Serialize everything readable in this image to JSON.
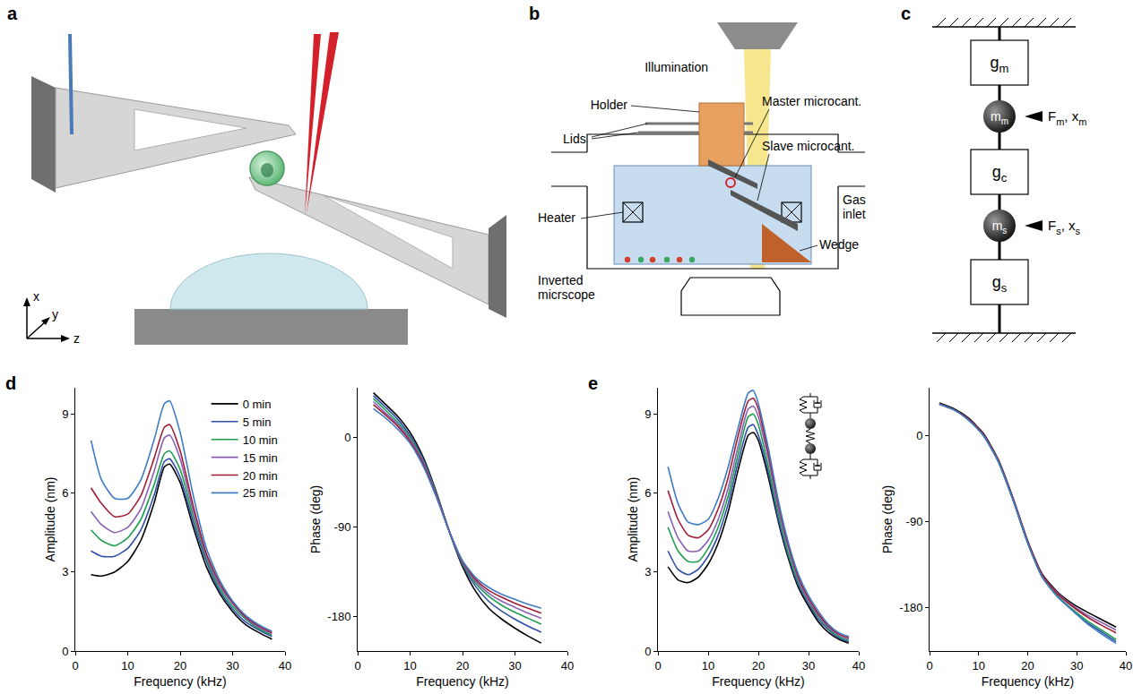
{
  "diagram_a": {
    "panel_label": "a",
    "axes": {
      "x": "x",
      "y": "y",
      "z": "z"
    }
  },
  "diagram_b": {
    "panel_label": "b",
    "labels": {
      "illumination": "Illumination",
      "holder": "Holder",
      "master": "Master microcant.",
      "slave": "Slave microcant.",
      "lids": "Lids",
      "gas_inlet": "Gas inlet",
      "heater": "Heater",
      "microscope": "Inverted micrscope",
      "wedge": "Wedge"
    }
  },
  "diagram_c": {
    "panel_label": "c",
    "elements": {
      "g_m": [
        [
          "g",
          "m"
        ]
      ],
      "m_m": [
        [
          "m",
          "m"
        ]
      ],
      "F_m": [
        [
          "F",
          "m"
        ],
        [
          ", x",
          "m"
        ]
      ],
      "g_c": [
        [
          "g",
          "c"
        ]
      ],
      "m_s": [
        [
          "m",
          "s"
        ]
      ],
      "F_s": [
        [
          "F",
          "s"
        ],
        [
          ", x",
          "s"
        ]
      ],
      "g_s": [
        [
          "g",
          "s"
        ]
      ]
    }
  },
  "chart_data": [
    {
      "type": "line",
      "panel_label": "d",
      "xlabel": "Frequency (kHz)",
      "ylabel": "Amplitude (nm)",
      "xlim": [
        0,
        40
      ],
      "xticks": [
        0,
        10,
        20,
        30,
        40
      ],
      "ylim": [
        0,
        10
      ],
      "yticks": [
        0,
        3,
        6,
        9
      ],
      "grid": false,
      "legend": "upper right",
      "x": [
        3,
        5,
        7.5,
        10,
        12.5,
        15,
        17,
        18,
        20,
        22.5,
        25,
        27.5,
        30,
        32.5,
        35,
        37.5
      ],
      "series": [
        {
          "name": "0 min",
          "color": "#000000",
          "values": [
            2.9,
            2.85,
            3.0,
            3.4,
            4.2,
            5.6,
            7.0,
            7.1,
            6.4,
            4.7,
            3.2,
            2.2,
            1.5,
            1.0,
            0.7,
            0.45
          ]
        },
        {
          "name": "5 min",
          "color": "#2f4fa8",
          "values": [
            3.8,
            3.6,
            3.6,
            3.9,
            4.6,
            5.9,
            7.2,
            7.3,
            6.6,
            4.9,
            3.4,
            2.3,
            1.6,
            1.1,
            0.8,
            0.55
          ]
        },
        {
          "name": "10 min",
          "color": "#1e9e50",
          "values": [
            4.6,
            4.2,
            4.0,
            4.3,
            5.0,
            6.3,
            7.5,
            7.6,
            6.9,
            5.1,
            3.5,
            2.4,
            1.7,
            1.2,
            0.85,
            0.6
          ]
        },
        {
          "name": "15 min",
          "color": "#8a5fb5",
          "values": [
            5.3,
            4.8,
            4.5,
            4.7,
            5.4,
            6.8,
            8.1,
            8.2,
            7.3,
            5.3,
            3.6,
            2.5,
            1.8,
            1.25,
            0.9,
            0.65
          ]
        },
        {
          "name": "20 min",
          "color": "#a01d36",
          "values": [
            6.2,
            5.6,
            5.1,
            5.2,
            5.9,
            7.3,
            8.5,
            8.6,
            7.6,
            5.5,
            3.7,
            2.6,
            1.85,
            1.3,
            0.95,
            0.7
          ]
        },
        {
          "name": "25 min",
          "color": "#3e7cc4",
          "values": [
            8.0,
            6.5,
            5.8,
            5.8,
            6.5,
            8.0,
            9.4,
            9.5,
            8.3,
            5.9,
            3.9,
            2.7,
            1.9,
            1.35,
            1.0,
            0.75
          ]
        }
      ]
    },
    {
      "type": "line",
      "xlabel": "Frequency (kHz)",
      "ylabel": "Phase (deg)",
      "xlim": [
        0,
        40
      ],
      "xticks": [
        0,
        10,
        20,
        30,
        40
      ],
      "ylim": [
        -215,
        50
      ],
      "yticks": [
        -180,
        -90,
        0
      ],
      "grid": false,
      "x": [
        3,
        5,
        7.5,
        10,
        12.5,
        15,
        17.5,
        20,
        22.5,
        25,
        27.5,
        30,
        32.5,
        35
      ],
      "series": [
        {
          "color": "#000000",
          "values": [
            45,
            35,
            22,
            5,
            -20,
            -55,
            -95,
            -130,
            -155,
            -172,
            -183,
            -192,
            -200,
            -207
          ]
        },
        {
          "color": "#2f4fa8",
          "values": [
            42,
            32,
            19,
            2,
            -22,
            -56,
            -95,
            -128,
            -150,
            -165,
            -175,
            -183,
            -190,
            -196
          ]
        },
        {
          "color": "#1e9e50",
          "values": [
            39,
            29,
            16,
            0,
            -24,
            -57,
            -95,
            -127,
            -147,
            -160,
            -169,
            -176,
            -182,
            -188
          ]
        },
        {
          "color": "#8a5fb5",
          "values": [
            36,
            26,
            14,
            -2,
            -25,
            -58,
            -95,
            -126,
            -145,
            -157,
            -165,
            -171,
            -177,
            -182
          ]
        },
        {
          "color": "#a01d36",
          "values": [
            33,
            24,
            12,
            -4,
            -27,
            -59,
            -95,
            -125,
            -143,
            -154,
            -161,
            -167,
            -172,
            -177
          ]
        },
        {
          "color": "#3e7cc4",
          "values": [
            29,
            21,
            9,
            -6,
            -29,
            -60,
            -95,
            -124,
            -141,
            -151,
            -158,
            -163,
            -168,
            -172
          ]
        }
      ]
    },
    {
      "type": "line",
      "panel_label": "e",
      "xlabel": "Frequency (kHz)",
      "ylabel": "Amplitude (nm)",
      "xlim": [
        0,
        40
      ],
      "xticks": [
        0,
        10,
        20,
        30,
        40
      ],
      "ylim": [
        0,
        10
      ],
      "yticks": [
        0,
        3,
        6,
        9
      ],
      "grid": false,
      "x": [
        2,
        4,
        6,
        8,
        10,
        12,
        14,
        16,
        18,
        19,
        20,
        22,
        24,
        26,
        28,
        30,
        32,
        34,
        36,
        38
      ],
      "series": [
        {
          "color": "#000000",
          "values": [
            3.2,
            2.7,
            2.6,
            2.8,
            3.3,
            4.1,
            5.3,
            6.9,
            8.2,
            8.3,
            8.0,
            6.6,
            4.9,
            3.5,
            2.4,
            1.7,
            1.1,
            0.7,
            0.45,
            0.3
          ]
        },
        {
          "color": "#2f4fa8",
          "values": [
            3.8,
            3.1,
            2.9,
            3.1,
            3.6,
            4.4,
            5.6,
            7.2,
            8.5,
            8.6,
            8.2,
            6.8,
            5.0,
            3.6,
            2.5,
            1.8,
            1.2,
            0.8,
            0.5,
            0.35
          ]
        },
        {
          "color": "#1e9e50",
          "values": [
            4.7,
            3.8,
            3.4,
            3.4,
            3.9,
            4.7,
            5.9,
            7.5,
            8.9,
            9.0,
            8.6,
            7.0,
            5.2,
            3.7,
            2.6,
            1.85,
            1.3,
            0.85,
            0.55,
            0.4
          ]
        },
        {
          "color": "#8a5fb5",
          "values": [
            5.3,
            4.3,
            3.8,
            3.8,
            4.2,
            5.0,
            6.2,
            7.8,
            9.2,
            9.3,
            8.9,
            7.3,
            5.4,
            3.9,
            2.7,
            1.9,
            1.35,
            0.9,
            0.6,
            0.45
          ]
        },
        {
          "color": "#a01d36",
          "values": [
            6.1,
            5.0,
            4.4,
            4.3,
            4.6,
            5.4,
            6.6,
            8.2,
            9.5,
            9.6,
            9.2,
            7.5,
            5.6,
            4.0,
            2.8,
            2.0,
            1.4,
            0.95,
            0.65,
            0.5
          ]
        },
        {
          "color": "#3e7cc4",
          "values": [
            7.0,
            5.6,
            4.9,
            4.8,
            5.0,
            5.8,
            7.0,
            8.5,
            9.8,
            9.9,
            9.4,
            7.7,
            5.7,
            4.1,
            2.9,
            2.1,
            1.5,
            1.0,
            0.7,
            0.55
          ]
        }
      ]
    },
    {
      "type": "line",
      "xlabel": "Frequency (kHz)",
      "ylabel": "Phase (deg)",
      "xlim": [
        0,
        40
      ],
      "xticks": [
        0,
        10,
        20,
        30,
        40
      ],
      "ylim": [
        -225,
        50
      ],
      "yticks": [
        -180,
        -90,
        0
      ],
      "grid": false,
      "x": [
        2,
        5,
        8,
        11,
        14,
        17,
        20,
        23,
        26,
        29,
        32,
        35,
        38
      ],
      "series": [
        {
          "color": "#000000",
          "values": [
            34,
            28,
            18,
            2,
            -25,
            -65,
            -110,
            -145,
            -163,
            -175,
            -184,
            -192,
            -200
          ]
        },
        {
          "color": "#2f4fa8",
          "values": [
            33,
            27,
            17,
            0,
            -27,
            -67,
            -112,
            -148,
            -168,
            -182,
            -195,
            -205,
            -215
          ]
        },
        {
          "color": "#1e9e50",
          "values": [
            33,
            27,
            16,
            0,
            -27,
            -67,
            -112,
            -148,
            -167,
            -181,
            -193,
            -203,
            -213
          ]
        },
        {
          "color": "#8a5fb5",
          "values": [
            33,
            27,
            17,
            1,
            -26,
            -66,
            -111,
            -146,
            -164,
            -177,
            -187,
            -195,
            -203
          ]
        },
        {
          "color": "#a01d36",
          "values": [
            33,
            27,
            17,
            1,
            -26,
            -66,
            -111,
            -146,
            -165,
            -178,
            -189,
            -198,
            -206
          ]
        },
        {
          "color": "#3e7cc4",
          "values": [
            33,
            27,
            16,
            0,
            -27,
            -67,
            -112,
            -148,
            -168,
            -182,
            -196,
            -207,
            -217
          ]
        }
      ]
    }
  ]
}
